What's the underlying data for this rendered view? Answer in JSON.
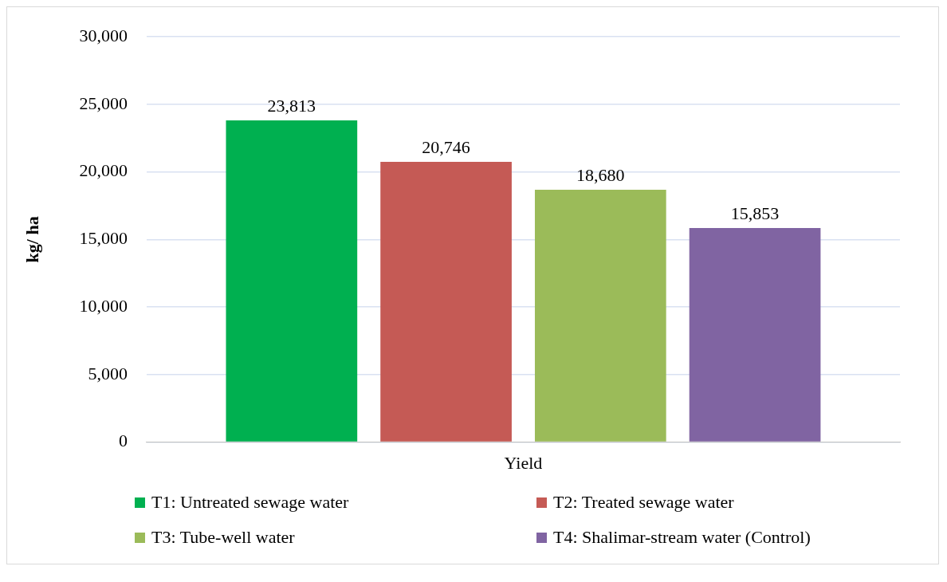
{
  "chart_data": {
    "type": "bar",
    "ylabel": "kg/ ha",
    "categories": [
      "Yield"
    ],
    "series": [
      {
        "name": "T1: Untreated sewage water",
        "color": "#00b050",
        "values": [
          23813
        ],
        "value_labels": [
          "23,813"
        ]
      },
      {
        "name": "T2: Treated sewage water",
        "color": "#c55a55",
        "values": [
          20746
        ],
        "value_labels": [
          "20,746"
        ]
      },
      {
        "name": "T3: Tube-well water",
        "color": "#9bbb59",
        "values": [
          18680
        ],
        "value_labels": [
          "18,680"
        ]
      },
      {
        "name": "T4: Shalimar-stream water (Control)",
        "color": "#8064a2",
        "values": [
          15853
        ],
        "value_labels": [
          "15,853"
        ]
      }
    ],
    "ylim": [
      0,
      30000
    ],
    "yticks": [
      0,
      {
        "value": 5000,
        "label": "5,000"
      },
      {
        "value": 10000,
        "label": "10,000"
      },
      {
        "value": 15000,
        "label": "15,000"
      },
      {
        "value": 20000,
        "label": "20,000"
      },
      {
        "value": 25000,
        "label": "25,000"
      },
      {
        "value": 30000,
        "label": "30,000"
      }
    ],
    "grid": "y",
    "legend": "bottom"
  }
}
